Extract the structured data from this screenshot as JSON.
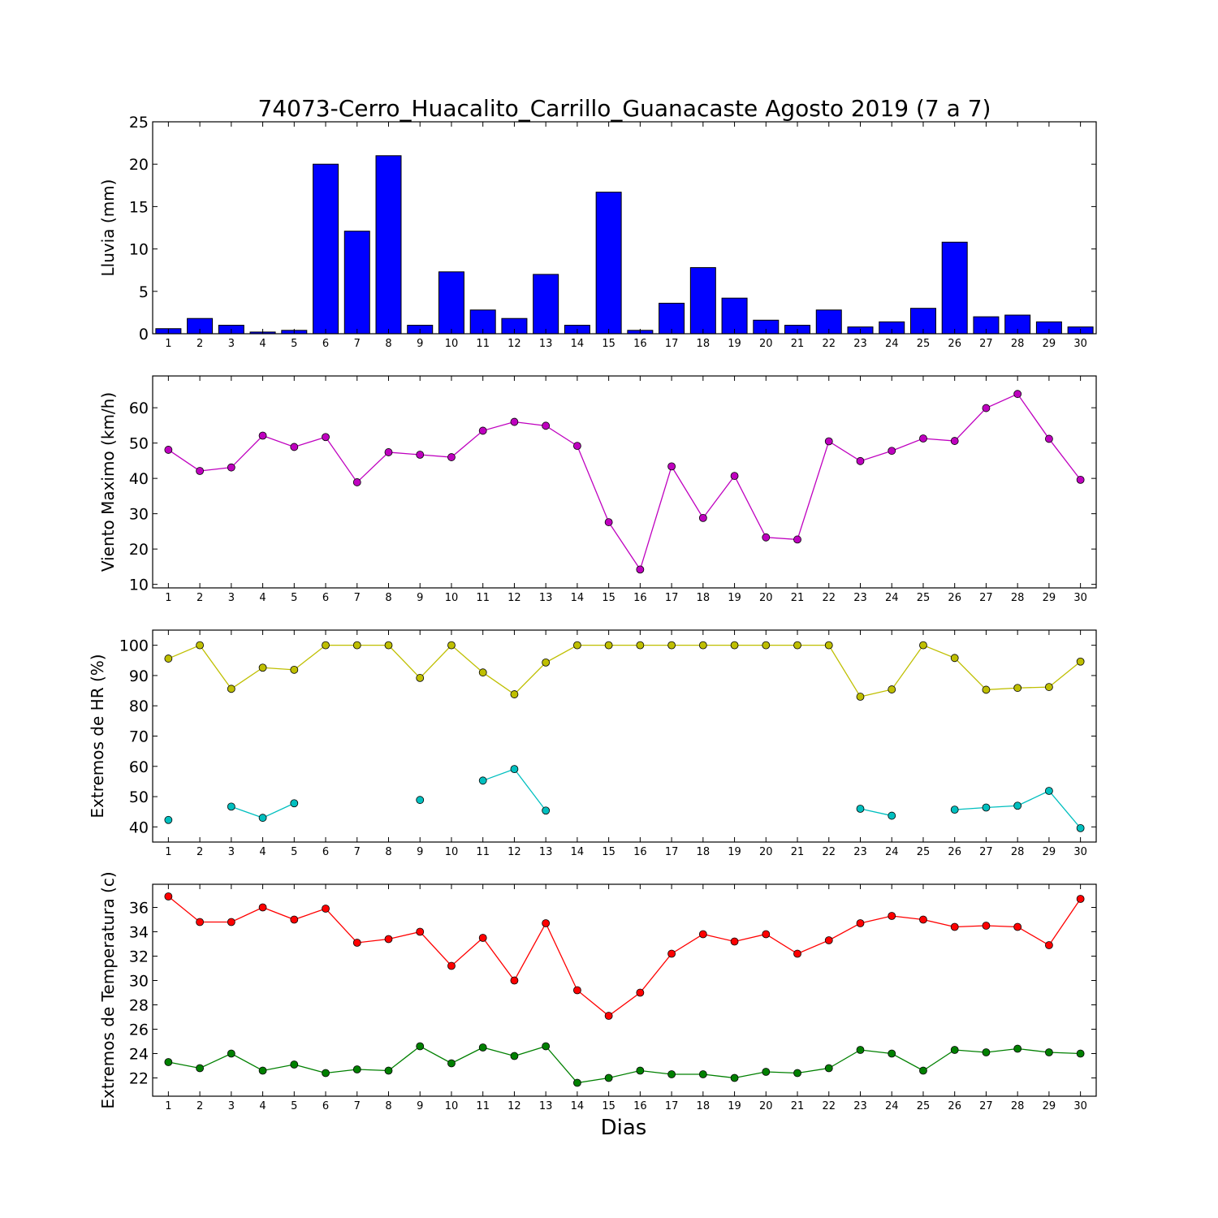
{
  "figure": {
    "title": "74073-Cerro_Huacalito_Carrillo_Guanacaste Agosto 2019  (7 a 7)",
    "xlabel": "Dias"
  },
  "colors": {
    "rain": "#0000ff",
    "wind": "#bf00bf",
    "hr_max": "#bfbf00",
    "hr_min": "#00bfbf",
    "temp_max": "#ff0000",
    "temp_min": "#008000"
  },
  "chart_data": [
    {
      "type": "bar",
      "ylabel": "Lluvia (mm)",
      "ylim": [
        0,
        25
      ],
      "yticks": [
        0,
        5,
        10,
        15,
        20,
        25
      ],
      "categories": [
        1,
        2,
        3,
        4,
        5,
        6,
        7,
        8,
        9,
        10,
        11,
        12,
        13,
        14,
        15,
        16,
        17,
        18,
        19,
        20,
        21,
        22,
        23,
        24,
        25,
        26,
        27,
        28,
        29,
        30
      ],
      "values": [
        0.6,
        1.8,
        1.0,
        0.2,
        0.4,
        20.0,
        12.1,
        21.0,
        1.0,
        7.3,
        2.8,
        1.8,
        7.0,
        1.0,
        16.7,
        0.4,
        3.6,
        7.8,
        4.2,
        1.6,
        1.0,
        2.8,
        0.8,
        1.4,
        3.0,
        10.8,
        2.0,
        2.2,
        1.4,
        0.8
      ]
    },
    {
      "type": "line",
      "ylabel": "Viento Maximo (km/h)",
      "ylim": [
        9,
        69
      ],
      "yticks": [
        10,
        20,
        30,
        40,
        50,
        60
      ],
      "x": [
        1,
        2,
        3,
        4,
        5,
        6,
        7,
        8,
        9,
        10,
        11,
        12,
        13,
        14,
        15,
        16,
        17,
        18,
        19,
        20,
        21,
        22,
        23,
        24,
        25,
        26,
        27,
        28,
        29,
        30
      ],
      "series": [
        {
          "values": [
            48.1,
            42.1,
            43.1,
            52.1,
            48.9,
            51.7,
            38.9,
            47.4,
            46.7,
            46.0,
            53.5,
            56.0,
            54.9,
            49.2,
            27.6,
            14.2,
            43.4,
            28.8,
            40.7,
            23.3,
            22.7,
            50.5,
            44.9,
            47.8,
            51.3,
            50.6,
            59.9,
            63.9,
            51.2,
            39.6
          ]
        }
      ]
    },
    {
      "type": "line",
      "ylabel": "Extremos de HR (%)",
      "ylim": [
        35,
        105
      ],
      "yticks": [
        40,
        50,
        60,
        70,
        80,
        90,
        100
      ],
      "x": [
        1,
        2,
        3,
        4,
        5,
        6,
        7,
        8,
        9,
        10,
        11,
        12,
        13,
        14,
        15,
        16,
        17,
        18,
        19,
        20,
        21,
        22,
        23,
        24,
        25,
        26,
        27,
        28,
        29,
        30
      ],
      "series": [
        {
          "values": [
            95.6,
            100,
            85.6,
            92.6,
            91.9,
            100,
            100,
            100,
            89.2,
            100,
            91.0,
            83.8,
            94.3,
            100,
            100,
            100,
            100,
            100,
            100,
            100,
            100,
            100,
            83.0,
            85.4,
            100,
            95.8,
            85.3,
            85.9,
            86.2,
            94.6
          ]
        },
        {
          "values": [
            42.3,
            null,
            46.7,
            43.0,
            47.8,
            null,
            null,
            null,
            48.9,
            null,
            55.3,
            59.1,
            45.4,
            null,
            null,
            null,
            null,
            null,
            null,
            null,
            null,
            null,
            46.0,
            43.7,
            null,
            45.7,
            46.4,
            47.0,
            51.9,
            39.6
          ]
        }
      ]
    },
    {
      "type": "line",
      "ylabel": "Extremos de Temperatura (c)",
      "ylim": [
        20.5,
        37.9
      ],
      "yticks": [
        22,
        24,
        26,
        28,
        30,
        32,
        34,
        36
      ],
      "x": [
        1,
        2,
        3,
        4,
        5,
        6,
        7,
        8,
        9,
        10,
        11,
        12,
        13,
        14,
        15,
        16,
        17,
        18,
        19,
        20,
        21,
        22,
        23,
        24,
        25,
        26,
        27,
        28,
        29,
        30
      ],
      "series": [
        {
          "values": [
            36.9,
            34.8,
            34.8,
            36.0,
            35.0,
            35.9,
            33.1,
            33.4,
            34.0,
            31.2,
            33.5,
            30.0,
            34.7,
            29.2,
            27.1,
            29.0,
            32.2,
            33.8,
            33.2,
            33.8,
            32.2,
            33.3,
            34.7,
            35.3,
            35.0,
            34.4,
            34.5,
            34.4,
            32.9,
            36.7
          ]
        },
        {
          "values": [
            23.3,
            22.8,
            24.0,
            22.6,
            23.1,
            22.4,
            22.7,
            22.6,
            24.6,
            23.2,
            24.5,
            23.8,
            24.6,
            21.6,
            22.0,
            22.6,
            22.3,
            22.3,
            22.0,
            22.5,
            22.4,
            22.8,
            24.3,
            24.0,
            22.6,
            24.3,
            24.1,
            24.4,
            24.1,
            24.0
          ]
        }
      ]
    }
  ]
}
